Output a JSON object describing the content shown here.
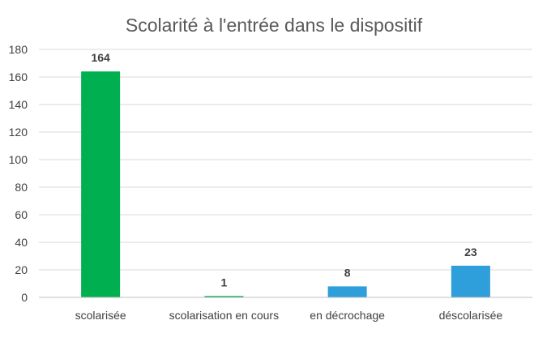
{
  "chart_data": {
    "type": "bar",
    "title": "Scolarité à l'entrée dans le dispositif",
    "xlabel": "",
    "ylabel": "",
    "categories": [
      "scolarisée",
      "scolarisation en cours",
      "en décrochage",
      "déscolarisée"
    ],
    "values": [
      164,
      1,
      8,
      23
    ],
    "data_labels": [
      "164",
      "1",
      "8",
      "23"
    ],
    "bar_colors": [
      "#00b050",
      "#00b050",
      "#2e9fdb",
      "#2e9fdb"
    ],
    "ylim": [
      0,
      180
    ],
    "yticks": [
      0,
      20,
      40,
      60,
      80,
      100,
      120,
      140,
      160,
      180
    ],
    "grid": true,
    "legend": "none"
  }
}
